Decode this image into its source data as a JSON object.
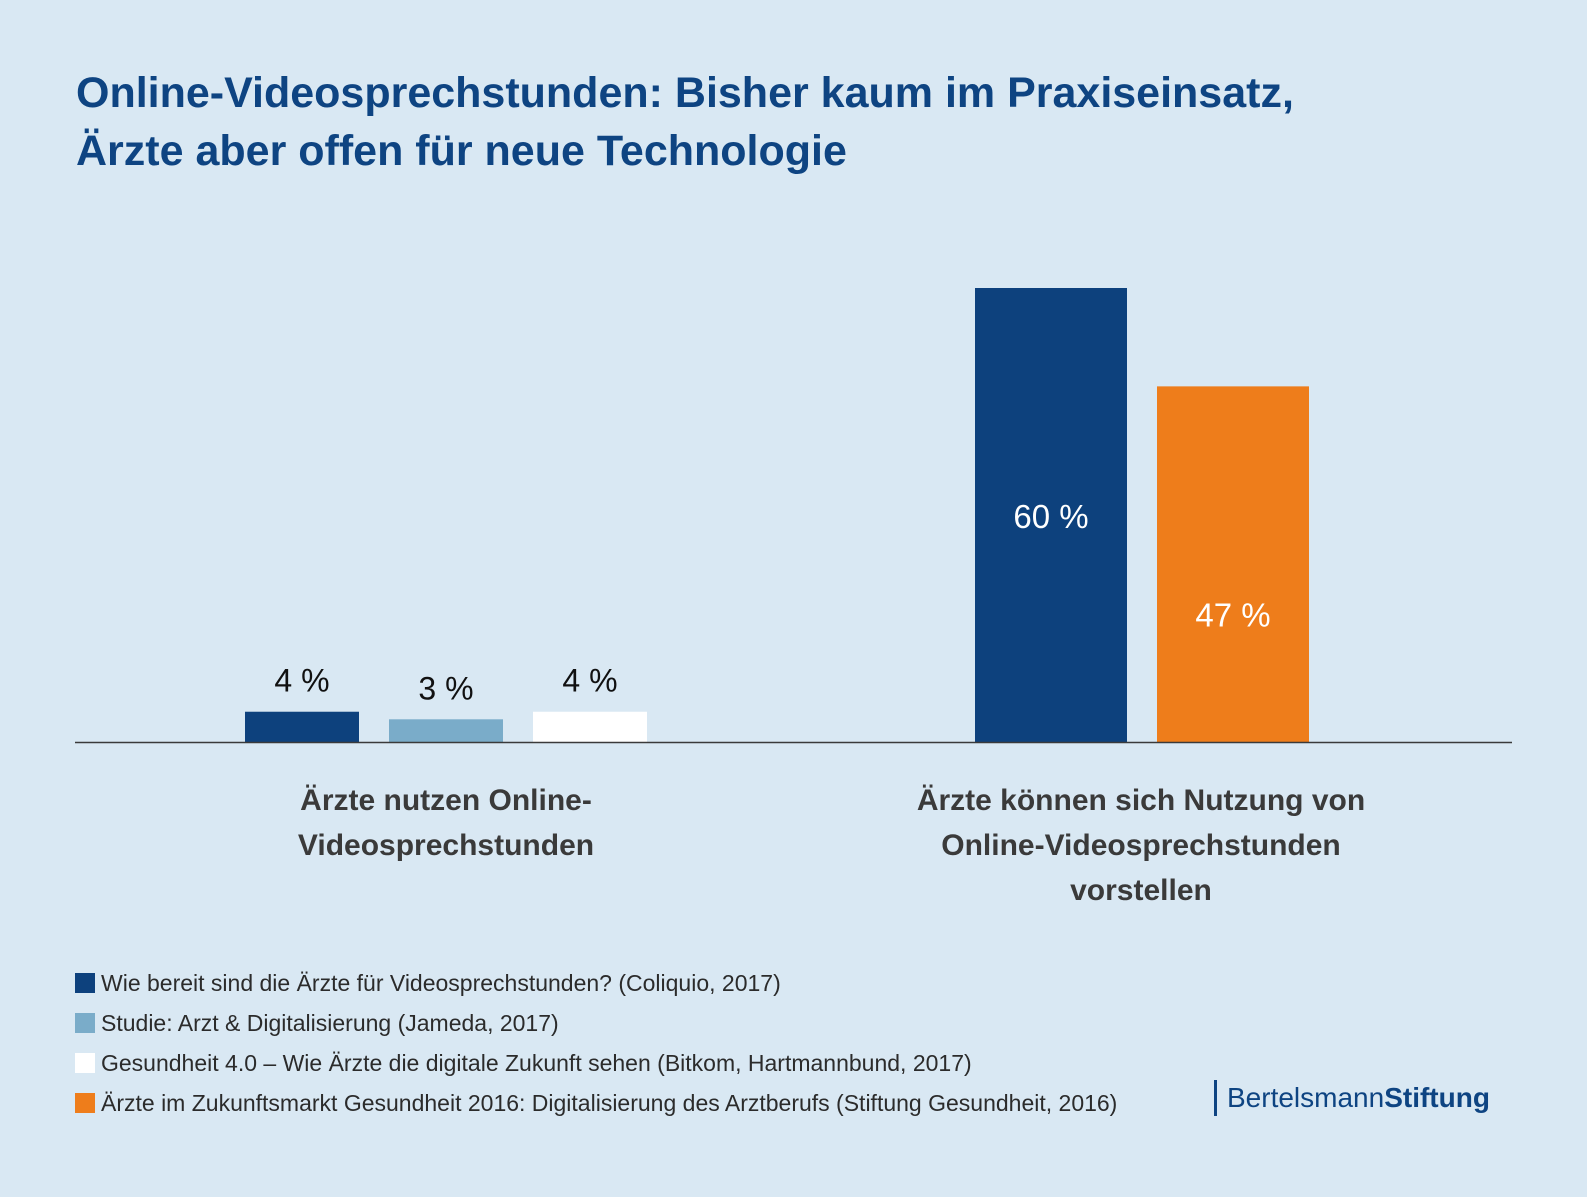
{
  "title": {
    "line1": "Online-Videosprechstunden: Bisher kaum im Praxiseinsatz,",
    "line2": "Ärzte aber offen für neue Technologie"
  },
  "chart_data": {
    "type": "bar",
    "title": "Online-Videosprechstunden: Bisher kaum im Praxiseinsatz, Ärzte aber offen für neue Technologie",
    "xlabel": "",
    "ylabel": "",
    "ylim": [
      0,
      60
    ],
    "grid": false,
    "legend_position": "bottom-left",
    "categories": [
      "Ärzte nutzen Online-Videosprechstunden",
      "Ärzte können sich Nutzung von Online-Videosprechstunden vorstellen"
    ],
    "category_label_lines": [
      [
        "Ärzte nutzen Online-",
        "Videosprechstunden"
      ],
      [
        "Ärzte können sich Nutzung von",
        "Online-Videosprechstunden",
        "vorstellen"
      ]
    ],
    "groups": [
      {
        "category_index": 0,
        "bars": [
          {
            "series": 0,
            "value": 4,
            "label": "4 %",
            "label_inside": false
          },
          {
            "series": 1,
            "value": 3,
            "label": "3 %",
            "label_inside": false
          },
          {
            "series": 2,
            "value": 4,
            "label": "4 %",
            "label_inside": false
          }
        ]
      },
      {
        "category_index": 1,
        "bars": [
          {
            "series": 0,
            "value": 60,
            "label": "60 %",
            "label_inside": true
          },
          {
            "series": 3,
            "value": 47,
            "label": "47 %",
            "label_inside": true
          }
        ]
      }
    ],
    "series": [
      {
        "name": "Wie bereit sind die Ärzte für Videosprechstunden? (Coliquio, 2017)",
        "color": "#0d417d"
      },
      {
        "name": "Studie: Arzt & Digitalisierung (Jameda, 2017)",
        "color": "#7aacc9"
      },
      {
        "name": "Gesundheit 4.0 – Wie Ärzte die digitale Zukunft sehen (Bitkom, Hartmannbund, 2017)",
        "color": "#ffffff"
      },
      {
        "name": "Ärzte im Zukunftsmarkt Gesundheit 2016: Digitalisierung des Arztberufs (Stiftung Gesundheit, 2016)",
        "color": "#ee7d1b"
      }
    ]
  },
  "logo": {
    "part1": "Bertelsmann",
    "part2": "Stiftung"
  }
}
